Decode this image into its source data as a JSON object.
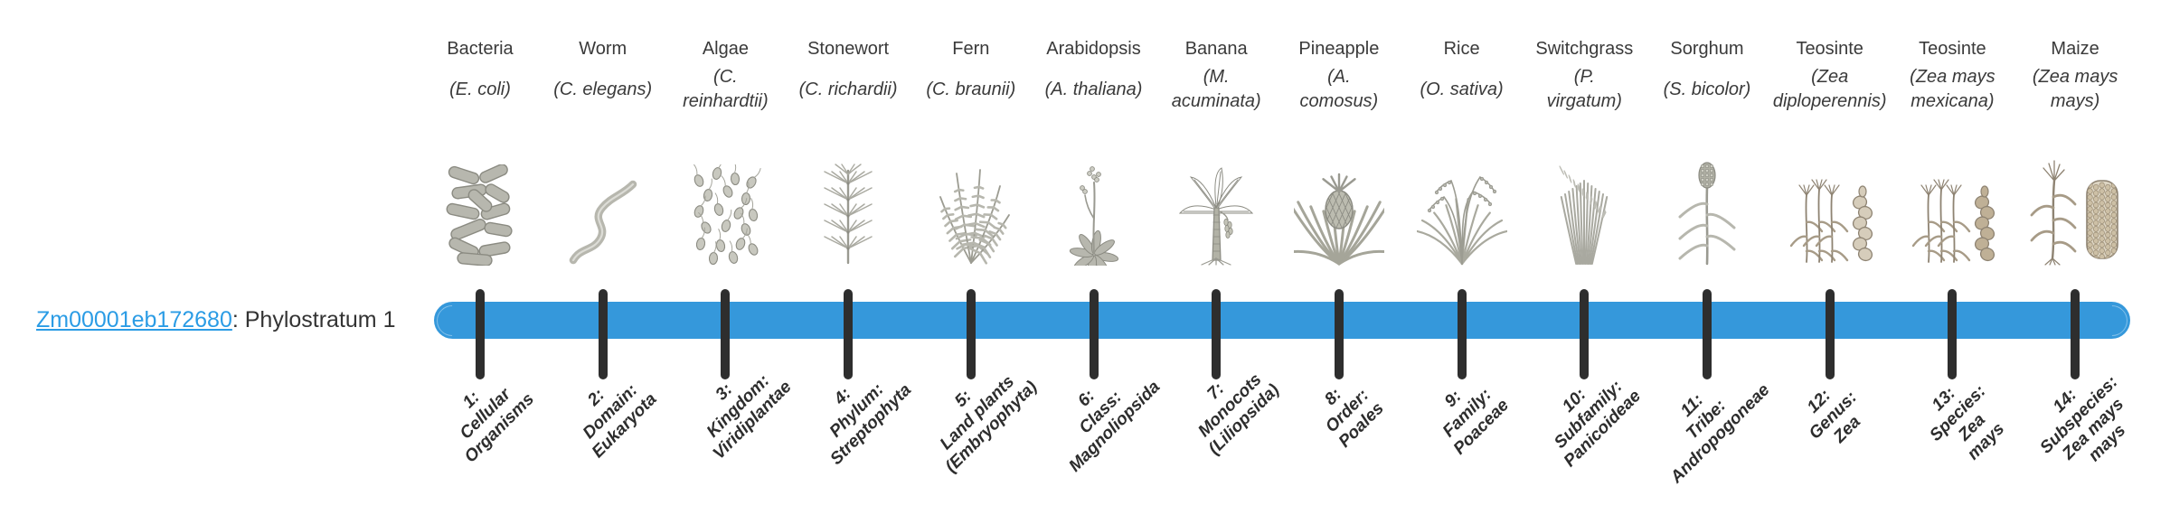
{
  "page": {
    "background": "#ffffff"
  },
  "gene": {
    "id": "Zm00001eb172680",
    "suffix": ": Phylostratum 1",
    "phylostratum": 1,
    "link_color": "#2b9ce5"
  },
  "timeline": {
    "bar_color": "#3598db",
    "tick_color": "#2e2e2e",
    "text_color": "#3a3a3a",
    "stage_label_color": "#2d2d2d",
    "num_strata": 14
  },
  "organisms": [
    {
      "common_name": "Bacteria",
      "scientific_name": "(E. coli)",
      "icon": "bacteria-icon",
      "stage_label": "1:\nCellular\nOrganisms"
    },
    {
      "common_name": "Worm",
      "scientific_name": "(C. elegans)",
      "icon": "worm-icon",
      "stage_label": "2:\nDomain:\nEukaryota"
    },
    {
      "common_name": "Algae",
      "scientific_name": "(C.\nreinhardtii)",
      "icon": "algae-icon",
      "stage_label": "3:\nKingdom:\nViridiplantae"
    },
    {
      "common_name": "Stonewort",
      "scientific_name": "(C. richardii)",
      "icon": "stonewort-icon",
      "stage_label": "4:\nPhylum:\nStreptophyta"
    },
    {
      "common_name": "Fern",
      "scientific_name": "(C. braunii)",
      "icon": "fern-icon",
      "stage_label": "5:\nLand plants\n(Embryophyta)"
    },
    {
      "common_name": "Arabidopsis",
      "scientific_name": "(A. thaliana)",
      "icon": "arabidopsis-icon",
      "stage_label": "6:\nClass:\nMagnoliopsida"
    },
    {
      "common_name": "Banana",
      "scientific_name": "(M.\nacuminata)",
      "icon": "banana-icon",
      "stage_label": "7:\nMonocots\n(Liliopsida)"
    },
    {
      "common_name": "Pineapple",
      "scientific_name": "(A.\ncomosus)",
      "icon": "pineapple-icon",
      "stage_label": "8:\nOrder:\nPoales"
    },
    {
      "common_name": "Rice",
      "scientific_name": "(O. sativa)",
      "icon": "rice-icon",
      "stage_label": "9:\nFamily:\nPoaceae"
    },
    {
      "common_name": "Switchgrass",
      "scientific_name": "(P.\nvirgatum)",
      "icon": "switchgrass-icon",
      "stage_label": "10:\nSubfamily:\nPanicoideae"
    },
    {
      "common_name": "Sorghum",
      "scientific_name": "(S. bicolor)",
      "icon": "sorghum-icon",
      "stage_label": "11:\nTribe:\nAndropogoneae"
    },
    {
      "common_name": "Teosinte",
      "scientific_name": "(Zea\ndiploperennis)",
      "icon": "teosinte-diplo-icon",
      "stage_label": "12:\nGenus:\nZea"
    },
    {
      "common_name": "Teosinte",
      "scientific_name": "(Zea mays\nmexicana)",
      "icon": "teosinte-mexicana-icon",
      "stage_label": "13:\nSpecies:\nZea\nmays"
    },
    {
      "common_name": "Maize",
      "scientific_name": "(Zea mays\nmays)",
      "icon": "maize-icon",
      "stage_label": "14:\nSubspecies:\nZea mays\nmays"
    }
  ]
}
